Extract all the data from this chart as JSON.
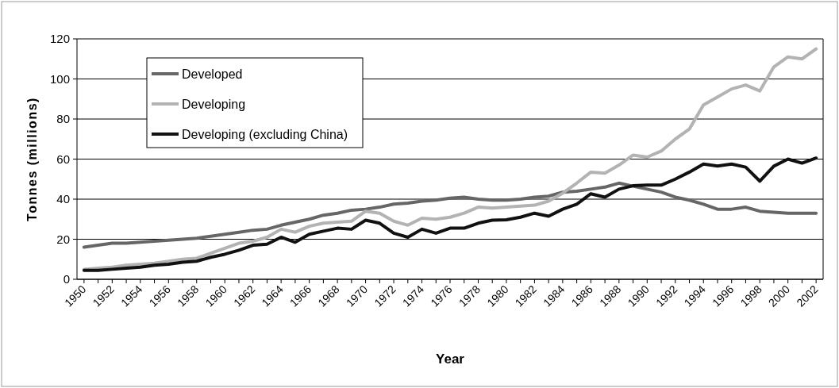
{
  "chart_data": {
    "type": "line",
    "xlabel": "Year",
    "ylabel": "Tonnes (millions)",
    "categories": [
      "1950",
      null,
      "1952",
      null,
      "1954",
      null,
      "1956",
      null,
      "1958",
      null,
      "1960",
      null,
      "1962",
      null,
      "1964",
      null,
      "1966",
      null,
      "1968",
      null,
      "1970",
      null,
      "1972",
      null,
      "1974",
      null,
      "1976",
      null,
      "1978",
      null,
      "1980",
      null,
      "1982",
      null,
      "1984",
      null,
      "1986",
      null,
      "1988",
      null,
      "1990",
      null,
      "1992",
      null,
      "1994",
      null,
      "1996",
      null,
      "1998",
      null,
      "2000",
      null,
      "2002"
    ],
    "series": [
      {
        "name": "Developed",
        "color": "#666666",
        "values": [
          16,
          17,
          18,
          18,
          18.5,
          19,
          19.5,
          20,
          20.5,
          21.5,
          22.5,
          23.5,
          24.5,
          25,
          27,
          28.5,
          30,
          32,
          33,
          34.5,
          35,
          36,
          37.5,
          38,
          39,
          39.5,
          40.5,
          41,
          40,
          39.5,
          39.5,
          40,
          41,
          41.5,
          43.5,
          44,
          45,
          46,
          48,
          46.5,
          45,
          43.5,
          41,
          39.5,
          37.5,
          35,
          35,
          36,
          34,
          33.5,
          33,
          33,
          33
        ]
      },
      {
        "name": "Developing",
        "color": "#b3b3b3",
        "values": [
          5,
          5.5,
          6,
          7,
          7.5,
          8,
          9,
          10,
          10.5,
          13,
          15.5,
          18,
          19,
          21,
          25,
          23.5,
          26.5,
          28,
          28.5,
          29,
          34,
          33,
          29,
          27,
          30.5,
          30,
          31,
          33,
          36,
          35.5,
          36,
          36.5,
          37,
          39,
          43,
          48,
          53.5,
          53,
          57,
          62,
          61,
          64,
          70,
          75,
          87,
          91,
          95,
          97,
          94,
          106,
          111,
          110,
          115
        ]
      },
      {
        "name": "Developing (excluding China)",
        "color": "#111111",
        "values": [
          4.5,
          4.5,
          5,
          5.5,
          6,
          7,
          7.5,
          8.5,
          9,
          11,
          12.5,
          14.5,
          17,
          17.5,
          21,
          18.5,
          22.5,
          24,
          25.5,
          25,
          29.5,
          28,
          23,
          21,
          25,
          23,
          25.5,
          25.5,
          28,
          29.5,
          29.7,
          31,
          33,
          31.5,
          35,
          37.5,
          42.7,
          41,
          45,
          46.7,
          47,
          47,
          50,
          53.5,
          57.5,
          56.5,
          57.5,
          56,
          49,
          56.5,
          60,
          58,
          60.5
        ]
      }
    ],
    "ylim": [
      0,
      120
    ],
    "yticks": [
      0,
      20,
      40,
      60,
      80,
      100,
      120
    ],
    "grid": "y",
    "legend": "top left",
    "marker": "none",
    "line_style": "solid"
  }
}
